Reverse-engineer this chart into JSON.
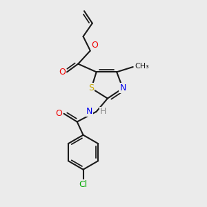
{
  "background_color": "#ebebeb",
  "atom_colors": {
    "S": "#c8a800",
    "N": "#0000ee",
    "O": "#ee0000",
    "Cl": "#00aa00",
    "C": "#1a1a1a",
    "H": "#888888"
  },
  "bond_color": "#1a1a1a",
  "bond_width": 1.5
}
